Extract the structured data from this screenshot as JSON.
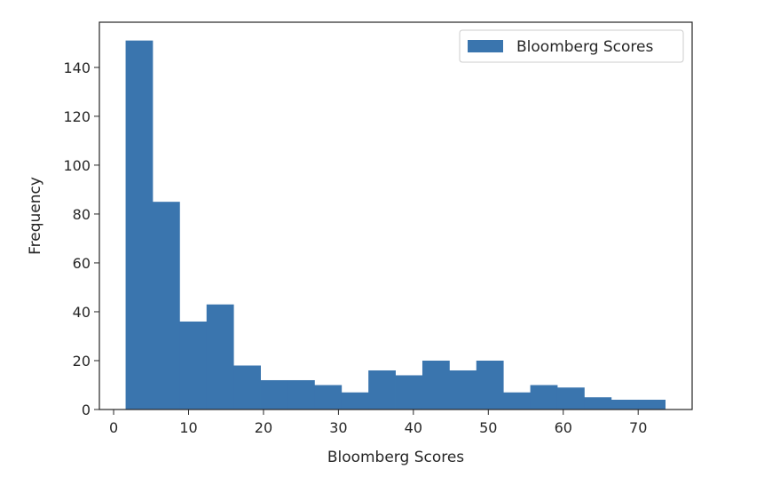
{
  "chart_data": {
    "type": "bar",
    "title": "",
    "xlabel": "Bloomberg Scores",
    "ylabel": "Frequency",
    "xlim": [
      -1.9,
      77.2
    ],
    "ylim": [
      0,
      158.5
    ],
    "xticks": [
      0,
      10,
      20,
      30,
      40,
      50,
      60,
      70
    ],
    "yticks": [
      0,
      20,
      40,
      60,
      80,
      100,
      120,
      140
    ],
    "grid": false,
    "legend": {
      "position": "top-right",
      "entries": [
        "Bloomberg Scores"
      ]
    },
    "colors": {
      "bar": "#3a75ae",
      "axis": "#262626"
    },
    "series": [
      {
        "name": "Bloomberg Scores",
        "bins": [
          {
            "start": 1.6,
            "end": 5.2,
            "count": 151
          },
          {
            "start": 5.2,
            "end": 8.8,
            "count": 85
          },
          {
            "start": 8.8,
            "end": 12.4,
            "count": 36
          },
          {
            "start": 12.4,
            "end": 16.0,
            "count": 43
          },
          {
            "start": 16.0,
            "end": 19.6,
            "count": 18
          },
          {
            "start": 19.6,
            "end": 23.2,
            "count": 12
          },
          {
            "start": 23.2,
            "end": 26.8,
            "count": 12
          },
          {
            "start": 26.8,
            "end": 30.4,
            "count": 10
          },
          {
            "start": 30.4,
            "end": 34.0,
            "count": 7
          },
          {
            "start": 34.0,
            "end": 37.6,
            "count": 16
          },
          {
            "start": 37.6,
            "end": 41.2,
            "count": 14
          },
          {
            "start": 41.2,
            "end": 44.8,
            "count": 20
          },
          {
            "start": 44.8,
            "end": 48.4,
            "count": 16
          },
          {
            "start": 48.4,
            "end": 52.0,
            "count": 20
          },
          {
            "start": 52.0,
            "end": 55.6,
            "count": 7
          },
          {
            "start": 55.6,
            "end": 59.2,
            "count": 10
          },
          {
            "start": 59.2,
            "end": 62.8,
            "count": 9
          },
          {
            "start": 62.8,
            "end": 66.4,
            "count": 5
          },
          {
            "start": 66.4,
            "end": 70.0,
            "count": 4
          },
          {
            "start": 70.0,
            "end": 73.6,
            "count": 4
          }
        ]
      }
    ]
  }
}
